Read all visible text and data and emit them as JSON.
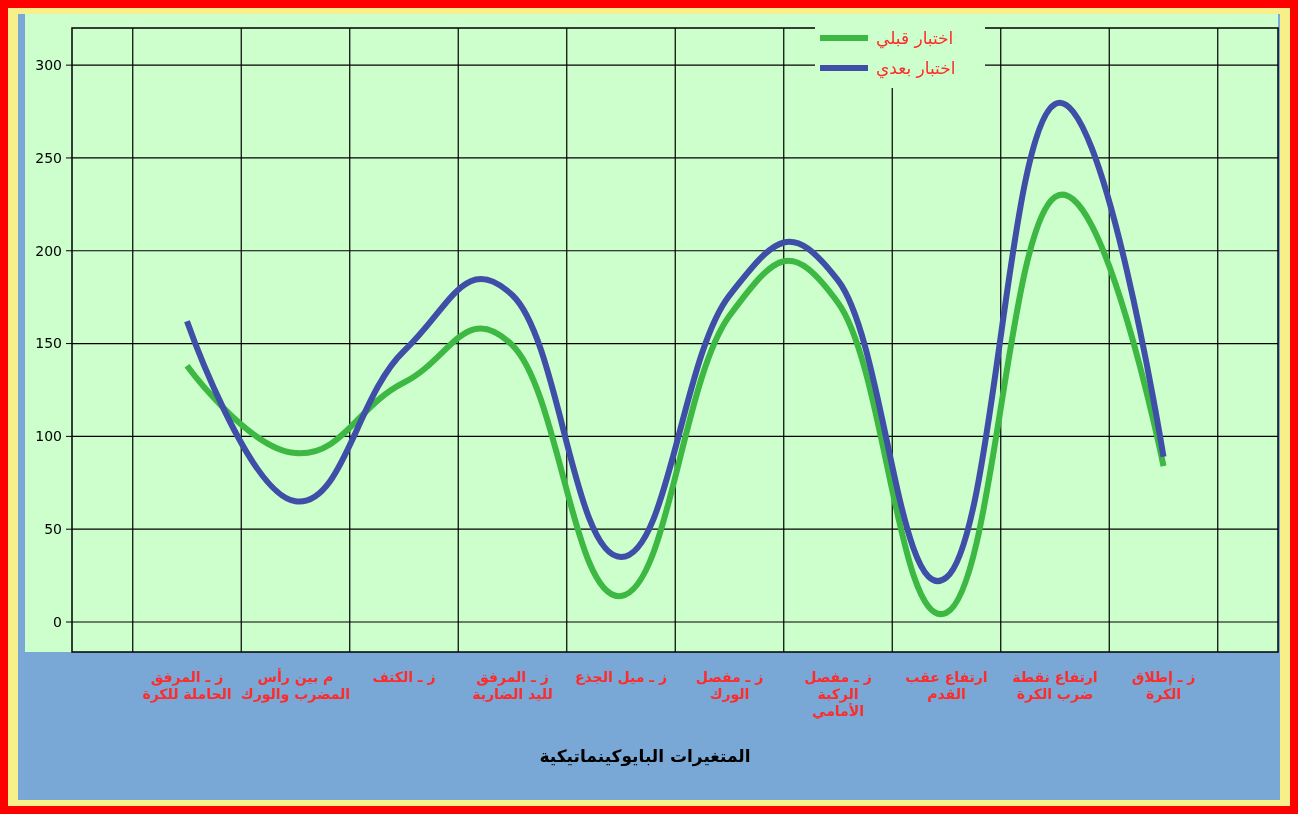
{
  "chart_data": {
    "type": "line",
    "xlabel": "المتغيرات البايوكينماتيكية",
    "categories": [
      "ز ـ المرفق الحاملة للكرة",
      "م بين رأس المضرب والورك",
      "ز ـ الكتف",
      "ز ـ المرفق لليد الضاربة",
      "ز ـ ميل الجذع",
      "ز ـ مفصل الورك",
      "ز ـ مفصل الركبة الأمامي",
      "ارتفاع عقب القدم",
      "ارتفاع نقطة ضرب الكرة",
      "ز ـ إطلاق الكرة"
    ],
    "series": [
      {
        "name": "اختبار قبلي",
        "color": "#3cb843",
        "values": [
          138,
          91,
          129,
          149,
          14,
          165,
          172,
          5,
          229,
          84
        ]
      },
      {
        "name": "اختبار بعدي",
        "color": "#3f4fa8",
        "values": [
          162,
          65,
          146,
          176,
          35,
          176,
          184,
          24,
          279,
          89
        ]
      }
    ],
    "ylim": [
      0,
      320
    ],
    "yticks": [
      0,
      50,
      100,
      150,
      200,
      250,
      300
    ],
    "grid": true,
    "legend": "top right",
    "line_style": "solid",
    "marker": "none"
  }
}
